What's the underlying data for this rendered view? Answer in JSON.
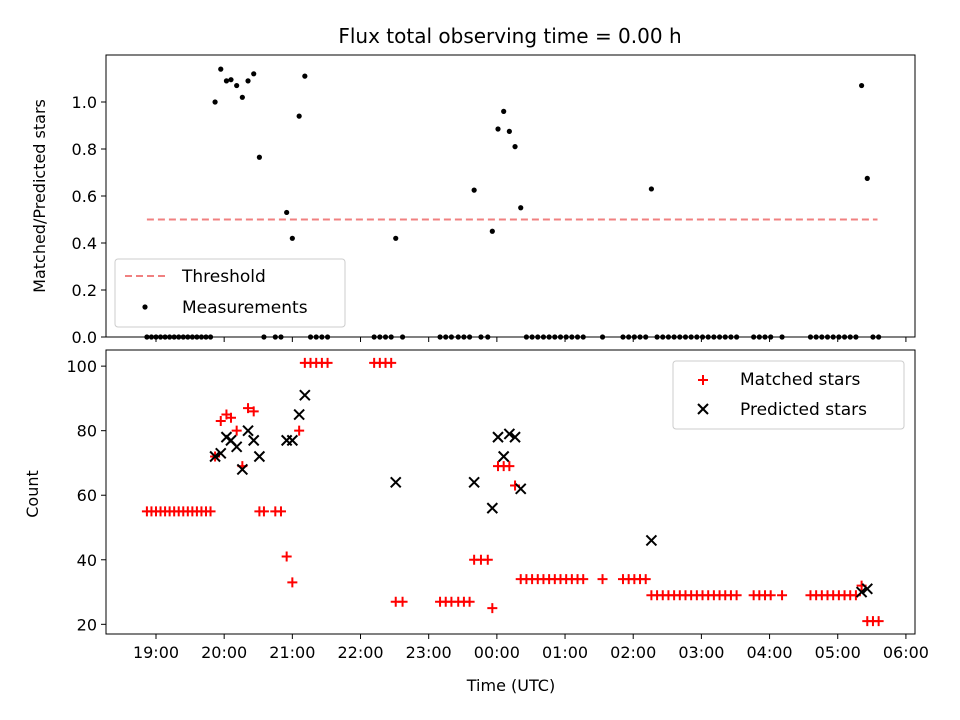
{
  "chart_data": [
    {
      "type": "scatter",
      "title": "Flux total observing time = 0.00 h",
      "xlabel": "",
      "ylabel": "Matched/Predicted stars",
      "xlim": [
        "18:16",
        "06:08"
      ],
      "ylim": [
        0,
        1.2
      ],
      "yticks": [
        {
          "v": 0.0,
          "label": "0.0"
        },
        {
          "v": 0.2,
          "label": "0.2"
        },
        {
          "v": 0.4,
          "label": "0.4"
        },
        {
          "v": 0.6,
          "label": "0.6"
        },
        {
          "v": 0.8,
          "label": "0.8"
        },
        {
          "v": 1.0,
          "label": "1.0"
        }
      ],
      "xticks": [
        "19:00",
        "20:00",
        "21:00",
        "22:00",
        "23:00",
        "00:00",
        "01:00",
        "02:00",
        "03:00",
        "04:00",
        "05:00",
        "06:00"
      ],
      "legend": {
        "placement": "lower-left",
        "threshold_label": "Threshold",
        "measurements_label": "Measurements"
      },
      "threshold": {
        "x_start": "18:52",
        "x_end": "05:35",
        "value": 0.5,
        "color": "#f08080"
      },
      "measurements": {
        "color": "#000000",
        "points": [
          [
            "18:52",
            0
          ],
          [
            "18:56",
            0
          ],
          [
            "19:00",
            0
          ],
          [
            "19:04",
            0
          ],
          [
            "19:08",
            0
          ],
          [
            "19:12",
            0
          ],
          [
            "19:16",
            0
          ],
          [
            "19:20",
            0
          ],
          [
            "19:24",
            0
          ],
          [
            "19:28",
            0
          ],
          [
            "19:32",
            0
          ],
          [
            "19:36",
            0
          ],
          [
            "19:40",
            0
          ],
          [
            "19:44",
            0
          ],
          [
            "19:48",
            0
          ],
          [
            "19:52",
            1.0
          ],
          [
            "19:57",
            1.14
          ],
          [
            "20:02",
            1.09
          ],
          [
            "20:06",
            1.095
          ],
          [
            "20:11",
            1.07
          ],
          [
            "20:16",
            1.02
          ],
          [
            "20:21",
            1.09
          ],
          [
            "20:26",
            1.12
          ],
          [
            "20:31",
            0.765
          ],
          [
            "20:35",
            0
          ],
          [
            "20:45",
            0
          ],
          [
            "20:50",
            0
          ],
          [
            "20:55",
            0.53
          ],
          [
            "21:00",
            0.42
          ],
          [
            "21:06",
            0.94
          ],
          [
            "21:11",
            1.11
          ],
          [
            "21:16",
            0
          ],
          [
            "21:21",
            0
          ],
          [
            "21:26",
            0
          ],
          [
            "21:31",
            0
          ],
          [
            "22:12",
            0
          ],
          [
            "22:17",
            0
          ],
          [
            "22:22",
            0
          ],
          [
            "22:27",
            0
          ],
          [
            "22:31",
            0.42
          ],
          [
            "22:37",
            0
          ],
          [
            "23:10",
            0
          ],
          [
            "23:15",
            0
          ],
          [
            "23:20",
            0
          ],
          [
            "23:26",
            0
          ],
          [
            "23:31",
            0
          ],
          [
            "23:36",
            0
          ],
          [
            "23:40",
            0.625
          ],
          [
            "23:46",
            0
          ],
          [
            "23:52",
            0
          ],
          [
            "23:56",
            0.45
          ],
          [
            "00:01",
            0.885
          ],
          [
            "00:06",
            0.96
          ],
          [
            "00:11",
            0.875
          ],
          [
            "00:16",
            0.81
          ],
          [
            "00:21",
            0.55
          ],
          [
            "00:26",
            0
          ],
          [
            "00:31",
            0
          ],
          [
            "00:36",
            0
          ],
          [
            "00:41",
            0
          ],
          [
            "00:46",
            0
          ],
          [
            "00:51",
            0
          ],
          [
            "00:56",
            0
          ],
          [
            "01:01",
            0
          ],
          [
            "01:06",
            0
          ],
          [
            "01:11",
            0
          ],
          [
            "01:16",
            0
          ],
          [
            "01:33",
            0
          ],
          [
            "01:51",
            0
          ],
          [
            "01:56",
            0
          ],
          [
            "02:01",
            0
          ],
          [
            "02:06",
            0
          ],
          [
            "02:11",
            0
          ],
          [
            "02:16",
            0.63
          ],
          [
            "02:21",
            0
          ],
          [
            "02:26",
            0
          ],
          [
            "02:31",
            0
          ],
          [
            "02:36",
            0
          ],
          [
            "02:41",
            0
          ],
          [
            "02:46",
            0
          ],
          [
            "02:51",
            0
          ],
          [
            "02:56",
            0
          ],
          [
            "03:01",
            0
          ],
          [
            "03:06",
            0
          ],
          [
            "03:11",
            0
          ],
          [
            "03:16",
            0
          ],
          [
            "03:21",
            0
          ],
          [
            "03:26",
            0
          ],
          [
            "03:31",
            0
          ],
          [
            "03:46",
            0
          ],
          [
            "03:51",
            0
          ],
          [
            "03:56",
            0
          ],
          [
            "04:01",
            0
          ],
          [
            "04:11",
            0
          ],
          [
            "04:36",
            0
          ],
          [
            "04:41",
            0
          ],
          [
            "04:46",
            0
          ],
          [
            "04:51",
            0
          ],
          [
            "04:56",
            0
          ],
          [
            "05:01",
            0
          ],
          [
            "05:06",
            0
          ],
          [
            "05:11",
            0
          ],
          [
            "05:16",
            0
          ],
          [
            "05:21",
            1.07
          ],
          [
            "05:26",
            0.675
          ],
          [
            "05:31",
            0
          ],
          [
            "05:36",
            0
          ]
        ]
      }
    },
    {
      "type": "scatter",
      "title": "",
      "xlabel": "Time (UTC)",
      "ylabel": "Count",
      "xlim": [
        "18:16",
        "06:08"
      ],
      "ylim": [
        17,
        105
      ],
      "yticks": [
        {
          "v": 20,
          "label": "20"
        },
        {
          "v": 40,
          "label": "40"
        },
        {
          "v": 60,
          "label": "60"
        },
        {
          "v": 80,
          "label": "80"
        },
        {
          "v": 100,
          "label": "100"
        }
      ],
      "xticks": [
        "19:00",
        "20:00",
        "21:00",
        "22:00",
        "23:00",
        "00:00",
        "01:00",
        "02:00",
        "03:00",
        "04:00",
        "05:00",
        "06:00"
      ],
      "legend": {
        "placement": "upper-right",
        "matched_label": "Matched stars",
        "predicted_label": "Predicted stars"
      },
      "matched": {
        "color": "#ff0000",
        "points": [
          [
            "18:52",
            55
          ],
          [
            "18:56",
            55
          ],
          [
            "19:00",
            55
          ],
          [
            "19:04",
            55
          ],
          [
            "19:08",
            55
          ],
          [
            "19:12",
            55
          ],
          [
            "19:16",
            55
          ],
          [
            "19:20",
            55
          ],
          [
            "19:24",
            55
          ],
          [
            "19:28",
            55
          ],
          [
            "19:32",
            55
          ],
          [
            "19:36",
            55
          ],
          [
            "19:40",
            55
          ],
          [
            "19:44",
            55
          ],
          [
            "19:48",
            55
          ],
          [
            "19:52",
            72
          ],
          [
            "19:57",
            83
          ],
          [
            "20:02",
            85
          ],
          [
            "20:06",
            84
          ],
          [
            "20:11",
            80
          ],
          [
            "20:16",
            69
          ],
          [
            "20:21",
            87
          ],
          [
            "20:26",
            86
          ],
          [
            "20:31",
            55
          ],
          [
            "20:35",
            55
          ],
          [
            "20:45",
            55
          ],
          [
            "20:50",
            55
          ],
          [
            "20:55",
            41
          ],
          [
            "21:00",
            33
          ],
          [
            "21:06",
            80
          ],
          [
            "21:11",
            101
          ],
          [
            "21:16",
            101
          ],
          [
            "21:21",
            101
          ],
          [
            "21:26",
            101
          ],
          [
            "21:31",
            101
          ],
          [
            "22:12",
            101
          ],
          [
            "22:17",
            101
          ],
          [
            "22:22",
            101
          ],
          [
            "22:27",
            101
          ],
          [
            "22:31",
            27
          ],
          [
            "22:37",
            27
          ],
          [
            "23:10",
            27
          ],
          [
            "23:15",
            27
          ],
          [
            "23:20",
            27
          ],
          [
            "23:26",
            27
          ],
          [
            "23:31",
            27
          ],
          [
            "23:36",
            27
          ],
          [
            "23:40",
            40
          ],
          [
            "23:46",
            40
          ],
          [
            "23:52",
            40
          ],
          [
            "23:56",
            25
          ],
          [
            "00:01",
            69
          ],
          [
            "00:06",
            69
          ],
          [
            "00:11",
            69
          ],
          [
            "00:16",
            63
          ],
          [
            "00:21",
            34
          ],
          [
            "00:26",
            34
          ],
          [
            "00:31",
            34
          ],
          [
            "00:36",
            34
          ],
          [
            "00:41",
            34
          ],
          [
            "00:46",
            34
          ],
          [
            "00:51",
            34
          ],
          [
            "00:56",
            34
          ],
          [
            "01:01",
            34
          ],
          [
            "01:06",
            34
          ],
          [
            "01:11",
            34
          ],
          [
            "01:16",
            34
          ],
          [
            "01:33",
            34
          ],
          [
            "01:51",
            34
          ],
          [
            "01:56",
            34
          ],
          [
            "02:01",
            34
          ],
          [
            "02:06",
            34
          ],
          [
            "02:11",
            34
          ],
          [
            "02:16",
            29
          ],
          [
            "02:21",
            29
          ],
          [
            "02:26",
            29
          ],
          [
            "02:31",
            29
          ],
          [
            "02:36",
            29
          ],
          [
            "02:41",
            29
          ],
          [
            "02:46",
            29
          ],
          [
            "02:51",
            29
          ],
          [
            "02:56",
            29
          ],
          [
            "03:01",
            29
          ],
          [
            "03:06",
            29
          ],
          [
            "03:11",
            29
          ],
          [
            "03:16",
            29
          ],
          [
            "03:21",
            29
          ],
          [
            "03:26",
            29
          ],
          [
            "03:31",
            29
          ],
          [
            "03:46",
            29
          ],
          [
            "03:51",
            29
          ],
          [
            "03:56",
            29
          ],
          [
            "04:01",
            29
          ],
          [
            "04:11",
            29
          ],
          [
            "04:36",
            29
          ],
          [
            "04:41",
            29
          ],
          [
            "04:46",
            29
          ],
          [
            "04:51",
            29
          ],
          [
            "04:56",
            29
          ],
          [
            "05:01",
            29
          ],
          [
            "05:06",
            29
          ],
          [
            "05:11",
            29
          ],
          [
            "05:16",
            29
          ],
          [
            "05:21",
            32
          ],
          [
            "05:26",
            21
          ],
          [
            "05:31",
            21
          ],
          [
            "05:36",
            21
          ]
        ]
      },
      "predicted": {
        "color": "#000000",
        "points": [
          [
            "19:52",
            72
          ],
          [
            "19:57",
            73
          ],
          [
            "20:02",
            78
          ],
          [
            "20:06",
            77
          ],
          [
            "20:11",
            75
          ],
          [
            "20:16",
            68
          ],
          [
            "20:21",
            80
          ],
          [
            "20:26",
            77
          ],
          [
            "20:31",
            72
          ],
          [
            "20:55",
            77
          ],
          [
            "21:00",
            77
          ],
          [
            "21:06",
            85
          ],
          [
            "21:11",
            91
          ],
          [
            "22:31",
            64
          ],
          [
            "23:40",
            64
          ],
          [
            "23:56",
            56
          ],
          [
            "00:01",
            78
          ],
          [
            "00:06",
            72
          ],
          [
            "00:11",
            79
          ],
          [
            "00:16",
            78
          ],
          [
            "00:21",
            62
          ],
          [
            "02:16",
            46
          ],
          [
            "05:21",
            30
          ],
          [
            "05:26",
            31
          ]
        ]
      }
    }
  ]
}
